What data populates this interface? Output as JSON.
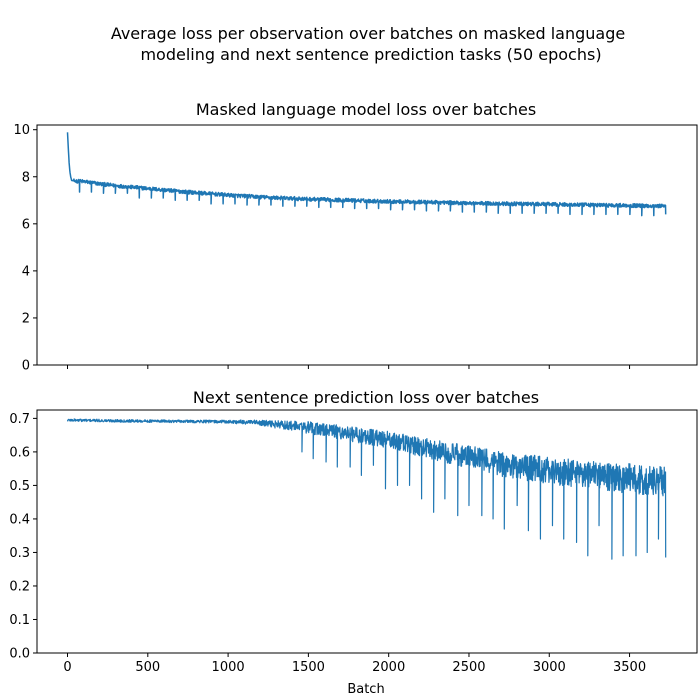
{
  "figure": {
    "suptitle_line1": "Average loss per observation over batches on masked language",
    "suptitle_line2": "modeling and next sentence prediction tasks (50 epochs)"
  },
  "colors": {
    "line": "#1f77b4",
    "axes": "#000000",
    "background": "#ffffff"
  },
  "chart_data": [
    {
      "type": "line",
      "title": "Masked language model loss over batches",
      "xlabel": "",
      "ylabel": "",
      "grid": false,
      "sharex": true,
      "xlim": [
        -190,
        3920
      ],
      "ylim": [
        0,
        10.2
      ],
      "xticks": [
        0,
        500,
        1000,
        1500,
        2000,
        2500,
        3000,
        3500
      ],
      "yticks": [
        0,
        2,
        4,
        6,
        8,
        10
      ],
      "ytick_labels": [
        "0",
        "2",
        "4",
        "6",
        "8",
        "10"
      ],
      "xtick_labels_shown": false,
      "series": [
        {
          "points_per_epoch": 74.5,
          "epochs": 50,
          "total_batches": 3725,
          "x": [
            0,
            5,
            10,
            15,
            20,
            25,
            40,
            100,
            200,
            300,
            500,
            750,
            1000,
            1250,
            1500,
            1750,
            2000,
            2250,
            2500,
            2750,
            3000,
            3250,
            3500,
            3725
          ],
          "y": [
            9.9,
            9.2,
            8.6,
            8.2,
            8.0,
            7.85,
            7.82,
            7.8,
            7.7,
            7.62,
            7.5,
            7.35,
            7.22,
            7.12,
            7.05,
            7.0,
            6.95,
            6.92,
            6.88,
            6.85,
            6.83,
            6.8,
            6.78,
            6.75
          ],
          "noise_amplitude": 0.08,
          "epoch_end_dip": [
            7.35,
            7.3,
            7.1,
            7.0,
            6.85,
            6.8,
            6.75,
            6.7,
            6.65,
            6.6,
            6.55,
            6.5,
            6.45,
            6.45,
            6.4,
            6.4,
            6.35
          ],
          "final_value": 6.4
        }
      ]
    },
    {
      "type": "line",
      "title": "Next sentence prediction loss over batches",
      "xlabel": "Batch",
      "ylabel": "",
      "grid": false,
      "xlim": [
        -190,
        3920
      ],
      "ylim": [
        0,
        0.725
      ],
      "xticks": [
        0,
        500,
        1000,
        1500,
        2000,
        2500,
        3000,
        3500
      ],
      "xtick_labels": [
        "0",
        "500",
        "1000",
        "1500",
        "2000",
        "2500",
        "3000",
        "3500"
      ],
      "yticks": [
        0.0,
        0.1,
        0.2,
        0.3,
        0.4,
        0.5,
        0.6,
        0.7
      ],
      "ytick_labels": [
        "0.0",
        "0.1",
        "0.2",
        "0.3",
        "0.4",
        "0.5",
        "0.6",
        "0.7"
      ],
      "series": [
        {
          "points_per_epoch": 74.5,
          "epochs": 50,
          "total_batches": 3725,
          "x": [
            0,
            250,
            500,
            750,
            1000,
            1150,
            1250,
            1400,
            1500,
            1750,
            2000,
            2250,
            2500,
            2750,
            3000,
            3250,
            3500,
            3725
          ],
          "y": [
            0.695,
            0.693,
            0.692,
            0.691,
            0.69,
            0.688,
            0.684,
            0.678,
            0.672,
            0.655,
            0.635,
            0.61,
            0.585,
            0.56,
            0.545,
            0.53,
            0.52,
            0.51
          ],
          "noise_amplitude": [
            0.004,
            0.004,
            0.004,
            0.004,
            0.005,
            0.007,
            0.01,
            0.014,
            0.018,
            0.022,
            0.026,
            0.03,
            0.034,
            0.038,
            0.04,
            0.042,
            0.045,
            0.045
          ],
          "epoch_end_dip_x": [
            1460,
            1530,
            1610,
            1680,
            1760,
            1830,
            1905,
            1980,
            2055,
            2130,
            2205,
            2280,
            2350,
            2430,
            2500,
            2580,
            2650,
            2720,
            2800,
            2870,
            2945,
            3020,
            3090,
            3170,
            3240,
            3310,
            3390,
            3460,
            3540,
            3610,
            3680
          ],
          "epoch_end_dip_y": [
            0.6,
            0.58,
            0.57,
            0.555,
            0.555,
            0.53,
            0.56,
            0.49,
            0.5,
            0.5,
            0.46,
            0.42,
            0.46,
            0.41,
            0.44,
            0.41,
            0.4,
            0.37,
            0.44,
            0.365,
            0.34,
            0.38,
            0.34,
            0.33,
            0.29,
            0.38,
            0.28,
            0.29,
            0.29,
            0.3,
            0.34
          ],
          "final_value": 0.285
        }
      ]
    }
  ]
}
